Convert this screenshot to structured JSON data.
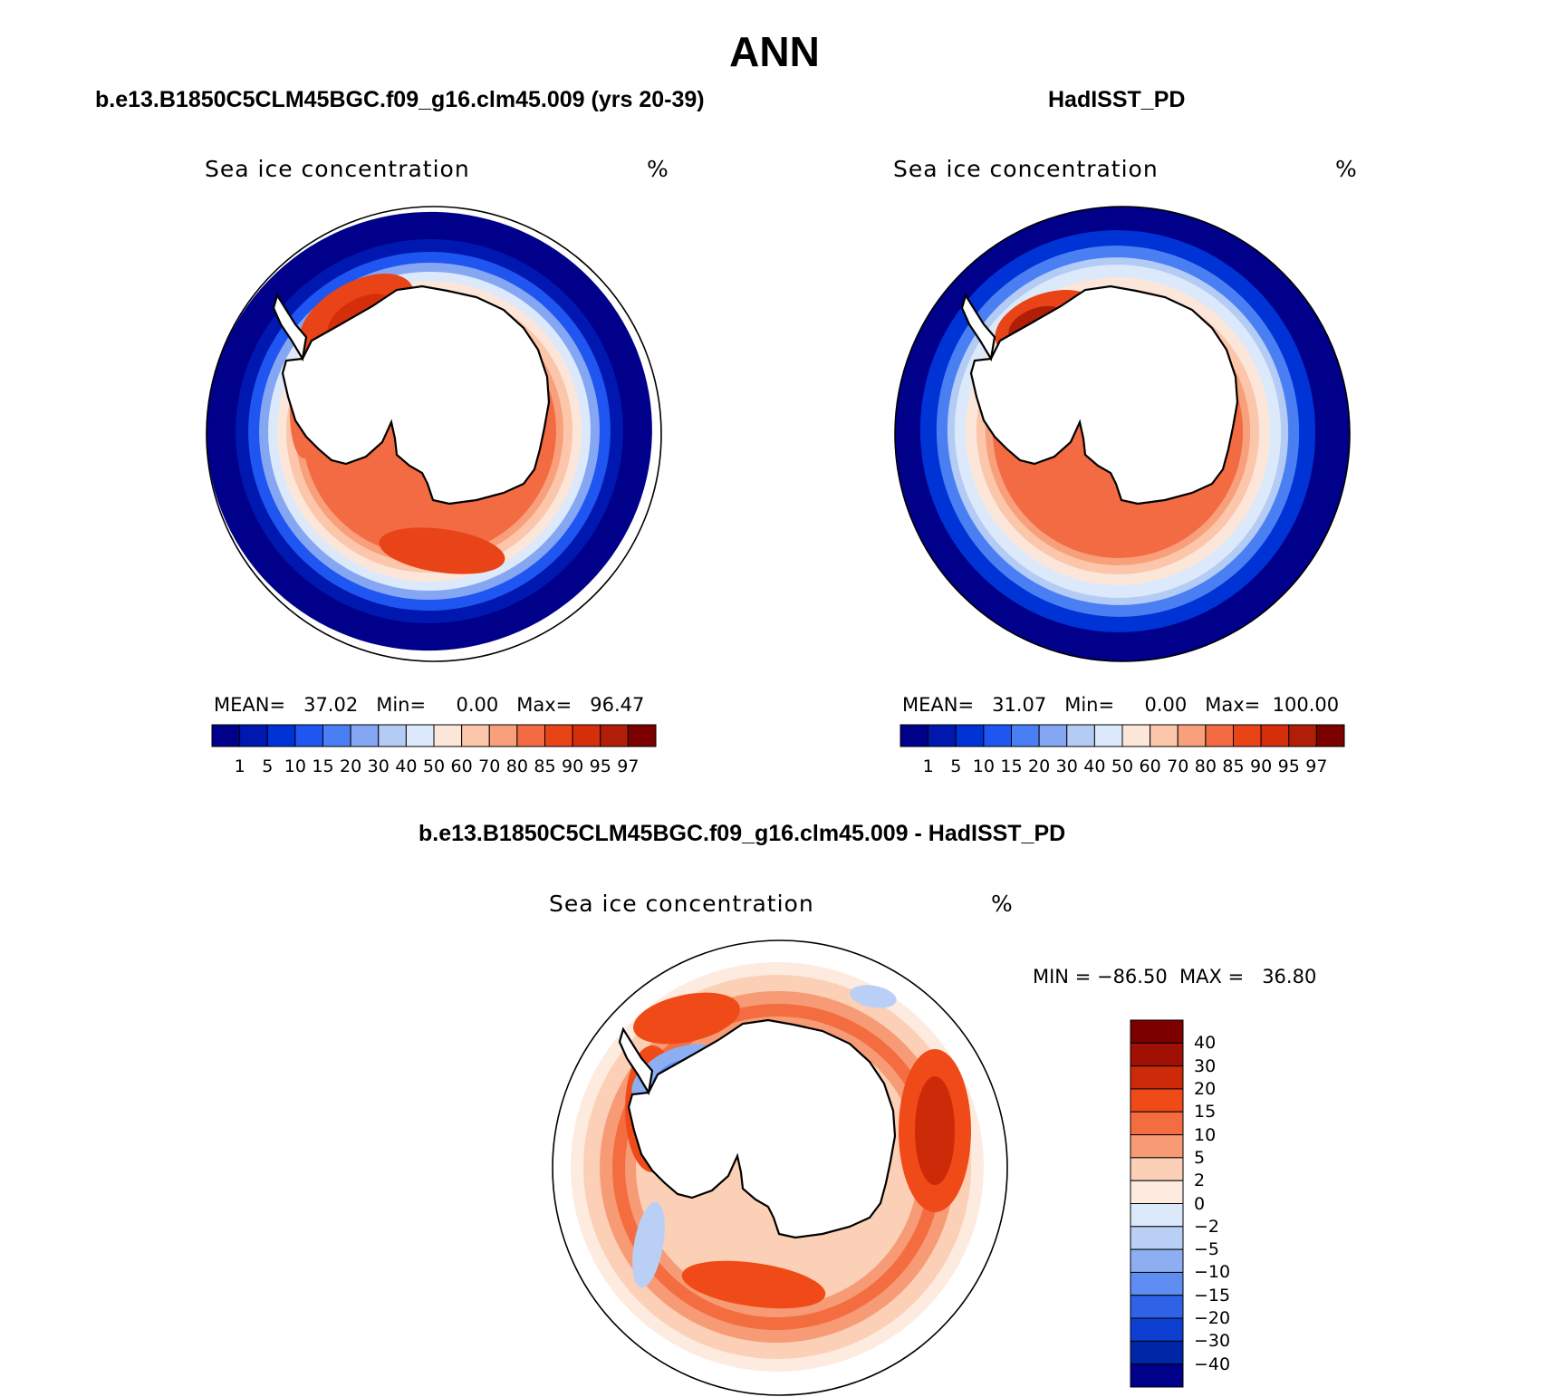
{
  "figure": {
    "title": "ANN",
    "colors": {
      "abs_palette": [
        "#00008a",
        "#0018b0",
        "#0033d6",
        "#1f55f0",
        "#4a7ff4",
        "#85a6f2",
        "#b4cbf5",
        "#dbe9fb",
        "#fce6da",
        "#fcc6ab",
        "#f8a07b",
        "#f26b43",
        "#e84418",
        "#d42e0b",
        "#b01e08",
        "#7c0000"
      ],
      "diff_palette": [
        "#7c0000",
        "#a01005",
        "#cc2a08",
        "#f04a18",
        "#f46d40",
        "#f79b76",
        "#fbd0b6",
        "#fdebdf",
        "#dbe9fb",
        "#b9cff6",
        "#8daff2",
        "#5f8ef2",
        "#2f62e6",
        "#0f3fd0",
        "#0026a8",
        "#00008a"
      ],
      "land": "#ffffff",
      "coast": "#000000"
    }
  },
  "panels": {
    "left": {
      "subtitle": "b.e13.B1850C5CLM45BGC.f09_g16.clm45.009 (yrs 20-39)",
      "variable": "Sea ice concentration",
      "units": "%",
      "stats": "MEAN=   37.02   Min=     0.00   Max=   96.47"
    },
    "right": {
      "subtitle": "HadISST_PD",
      "variable": "Sea ice concentration",
      "units": "%",
      "stats": "MEAN=   31.07   Min=     0.00   Max=  100.00"
    },
    "diff": {
      "subtitle": "b.e13.B1850C5CLM45BGC.f09_g16.clm45.009 - HadISST_PD",
      "variable": "Sea ice concentration",
      "units": "%",
      "stats": "MIN = −86.50  MAX =   36.80"
    }
  },
  "chart_data": [
    {
      "type": "heatmap",
      "projection": "south polar stereographic",
      "title": "Sea ice concentration",
      "units": "%",
      "mean": 37.02,
      "min": 0.0,
      "max": 96.47,
      "colorbar_levels": [
        "1",
        "5",
        "10",
        "15",
        "20",
        "30",
        "40",
        "50",
        "60",
        "70",
        "80",
        "85",
        "90",
        "95",
        "97"
      ]
    },
    {
      "type": "heatmap",
      "projection": "south polar stereographic",
      "title": "Sea ice concentration",
      "units": "%",
      "mean": 31.07,
      "min": 0.0,
      "max": 100.0,
      "colorbar_levels": [
        "1",
        "5",
        "10",
        "15",
        "20",
        "30",
        "40",
        "50",
        "60",
        "70",
        "80",
        "85",
        "90",
        "95",
        "97"
      ]
    },
    {
      "type": "heatmap",
      "projection": "south polar stereographic",
      "title": "Sea ice concentration",
      "units": "%",
      "min": -86.5,
      "max": 36.8,
      "colorbar_levels": [
        "40",
        "30",
        "20",
        "15",
        "10",
        "5",
        "2",
        "0",
        "−2",
        "−5",
        "−10",
        "−15",
        "−20",
        "−30",
        "−40"
      ]
    }
  ]
}
